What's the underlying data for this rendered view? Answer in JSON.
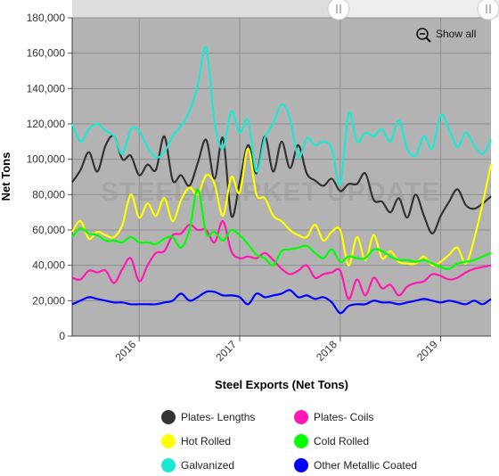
{
  "chart_data": {
    "type": "line",
    "title": "",
    "xlabel": "Steel Exports (Net Tons)",
    "ylabel": "Net Tons",
    "ylim": [
      0,
      180000
    ],
    "y_ticks": [
      "0",
      "20,000",
      "40,000",
      "60,000",
      "80,000",
      "100,000",
      "120,000",
      "140,000",
      "160,000",
      "180,000"
    ],
    "x_ticks": [
      "2016",
      "2017",
      "2018",
      "2019"
    ],
    "x_range": [
      "2015-05",
      "2019-07"
    ],
    "grid": true,
    "legend_position": "bottom",
    "x": [
      "2015-05",
      "2015-06",
      "2015-07",
      "2015-08",
      "2015-09",
      "2015-10",
      "2015-11",
      "2015-12",
      "2016-01",
      "2016-02",
      "2016-03",
      "2016-04",
      "2016-05",
      "2016-06",
      "2016-07",
      "2016-08",
      "2016-09",
      "2016-10",
      "2016-11",
      "2016-12",
      "2017-01",
      "2017-02",
      "2017-03",
      "2017-04",
      "2017-05",
      "2017-06",
      "2017-07",
      "2017-08",
      "2017-09",
      "2017-10",
      "2017-11",
      "2017-12",
      "2018-01",
      "2018-02",
      "2018-03",
      "2018-04",
      "2018-05",
      "2018-06",
      "2018-07",
      "2018-08",
      "2018-09",
      "2018-10",
      "2018-11",
      "2018-12",
      "2019-01",
      "2019-02",
      "2019-03",
      "2019-04",
      "2019-05",
      "2019-06",
      "2019-07"
    ],
    "series": [
      {
        "name": "Plates- Lengths",
        "color": "#333333",
        "values": [
          87000,
          94000,
          104000,
          93000,
          108000,
          113000,
          100000,
          102000,
          91000,
          97000,
          94000,
          113000,
          88000,
          91000,
          85000,
          98000,
          111000,
          89000,
          112000,
          68000,
          87000,
          108000,
          92000,
          113000,
          93000,
          110000,
          95000,
          108000,
          92000,
          88000,
          85000,
          89000,
          82000,
          86000,
          86000,
          92000,
          77000,
          76000,
          70000,
          78000,
          67000,
          80000,
          68000,
          58000,
          68000,
          76000,
          83000,
          74000,
          72000,
          75000,
          79000
        ]
      },
      {
        "name": "Plates- Coils",
        "color": "#ff1ab3",
        "values": [
          33000,
          32000,
          37000,
          36000,
          37000,
          30000,
          38000,
          44000,
          31000,
          40000,
          47000,
          48000,
          57000,
          58000,
          63000,
          60000,
          60000,
          53000,
          65000,
          48000,
          44000,
          45000,
          44000,
          47000,
          43000,
          38000,
          35000,
          37000,
          40000,
          33000,
          35000,
          36000,
          37000,
          21000,
          32000,
          23000,
          33000,
          27000,
          29000,
          23000,
          28000,
          30000,
          31000,
          35000,
          34000,
          32000,
          33000,
          36000,
          38000,
          39000,
          40000
        ]
      },
      {
        "name": "Hot Rolled",
        "color": "#ffff00",
        "values": [
          59000,
          65000,
          55000,
          59000,
          57000,
          56000,
          63000,
          80000,
          67000,
          75000,
          68000,
          78000,
          65000,
          77000,
          84000,
          80000,
          91000,
          86000,
          68000,
          90000,
          81000,
          106000,
          80000,
          78000,
          68000,
          65000,
          60000,
          57000,
          56000,
          63000,
          54000,
          59000,
          60000,
          40000,
          56000,
          43000,
          57000,
          44000,
          48000,
          42000,
          41000,
          41000,
          45000,
          40000,
          42000,
          46000,
          50000,
          41000,
          55000,
          75000,
          97000
        ]
      },
      {
        "name": "Cold Rolled",
        "color": "#00ff00",
        "values": [
          56000,
          61000,
          58000,
          57000,
          54000,
          54000,
          53000,
          56000,
          53000,
          53000,
          52000,
          55000,
          56000,
          50000,
          60000,
          83000,
          58000,
          59000,
          54000,
          60000,
          57000,
          52000,
          46000,
          44000,
          40000,
          48000,
          49000,
          50000,
          51000,
          47000,
          44000,
          49000,
          42000,
          45000,
          44000,
          44000,
          49000,
          48000,
          45000,
          43000,
          43000,
          42000,
          43000,
          41000,
          39000,
          38000,
          41000,
          42000,
          43000,
          45000,
          47000
        ]
      },
      {
        "name": "Galvanized",
        "color": "#1de9d2",
        "values": [
          120000,
          110000,
          117000,
          120000,
          116000,
          113000,
          103000,
          117000,
          116000,
          107000,
          101000,
          104000,
          113000,
          119000,
          127000,
          142000,
          163000,
          121000,
          106000,
          127000,
          115000,
          122000,
          93000,
          112000,
          120000,
          131000,
          123000,
          101000,
          112000,
          108000,
          110000,
          106000,
          86000,
          126000,
          110000,
          115000,
          113000,
          117000,
          110000,
          122000,
          106000,
          102000,
          113000,
          106000,
          125000,
          117000,
          107000,
          115000,
          108000,
          103000,
          111000
        ]
      },
      {
        "name": "Other Metallic Coated",
        "color": "#0000ff",
        "values": [
          18000,
          20000,
          22000,
          21000,
          20000,
          19000,
          19000,
          18000,
          18000,
          18000,
          18000,
          19000,
          20000,
          24000,
          20000,
          22000,
          25000,
          25000,
          23000,
          23000,
          22000,
          18000,
          24000,
          22000,
          23000,
          24000,
          26000,
          22000,
          23000,
          21000,
          22000,
          19000,
          13000,
          17000,
          18000,
          18000,
          20000,
          19000,
          19000,
          18000,
          19000,
          20000,
          21000,
          20000,
          19000,
          20000,
          19000,
          18000,
          20000,
          18000,
          21000
        ]
      }
    ]
  },
  "watermark": "STEEL MARKET UPDATE",
  "controls": {
    "show_all_label": "Show all",
    "zoom_icon": "zoom-out-icon"
  }
}
